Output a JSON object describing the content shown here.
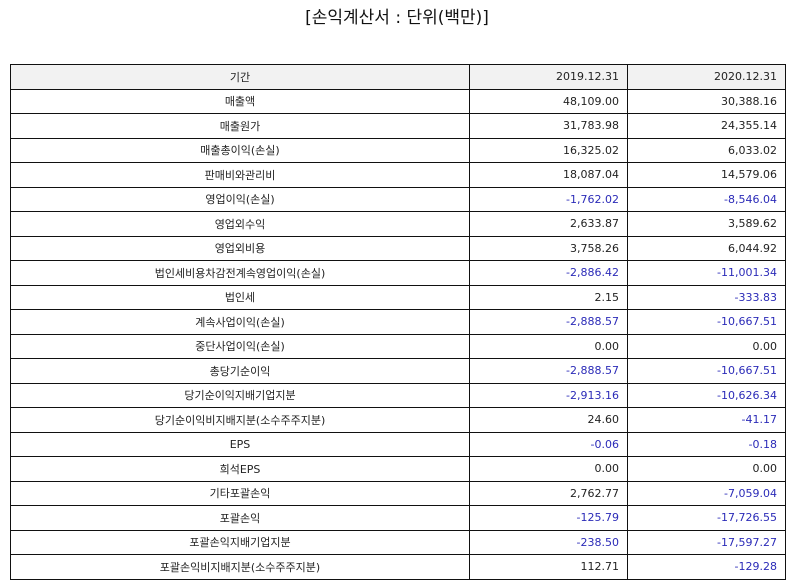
{
  "title": "[손익계산서 : 단위(백만)]",
  "table": {
    "header": [
      "기간",
      "2019.12.31",
      "2020.12.31"
    ],
    "rows": [
      {
        "label": "매출액",
        "values": [
          "48,109.00",
          "30,388.16"
        ]
      },
      {
        "label": "매출원가",
        "values": [
          "31,783.98",
          "24,355.14"
        ]
      },
      {
        "label": "매출총이익(손실)",
        "values": [
          "16,325.02",
          "6,033.02"
        ]
      },
      {
        "label": "판매비와관리비",
        "values": [
          "18,087.04",
          "14,579.06"
        ]
      },
      {
        "label": "영업이익(손실)",
        "values": [
          "-1,762.02",
          "-8,546.04"
        ]
      },
      {
        "label": "영업외수익",
        "values": [
          "2,633.87",
          "3,589.62"
        ]
      },
      {
        "label": "영업외비용",
        "values": [
          "3,758.26",
          "6,044.92"
        ]
      },
      {
        "label": "법인세비용차감전계속영업이익(손실)",
        "values": [
          "-2,886.42",
          "-11,001.34"
        ]
      },
      {
        "label": "법인세",
        "values": [
          "2.15",
          "-333.83"
        ]
      },
      {
        "label": "계속사업이익(손실)",
        "values": [
          "-2,888.57",
          "-10,667.51"
        ]
      },
      {
        "label": "중단사업이익(손실)",
        "values": [
          "0.00",
          "0.00"
        ]
      },
      {
        "label": "총당기순이익",
        "values": [
          "-2,888.57",
          "-10,667.51"
        ]
      },
      {
        "label": "당기순이익지배기업지분",
        "values": [
          "-2,913.16",
          "-10,626.34"
        ]
      },
      {
        "label": "당기순이익비지배지분(소수주주지분)",
        "values": [
          "24.60",
          "-41.17"
        ]
      },
      {
        "label": "EPS",
        "values": [
          "-0.06",
          "-0.18"
        ]
      },
      {
        "label": "희석EPS",
        "values": [
          "0.00",
          "0.00"
        ]
      },
      {
        "label": "기타포괄손익",
        "values": [
          "2,762.77",
          "-7,059.04"
        ]
      },
      {
        "label": "포괄손익",
        "values": [
          "-125.79",
          "-17,726.55"
        ]
      },
      {
        "label": "포괄손익지배기업지분",
        "values": [
          "-238.50",
          "-17,597.27"
        ]
      },
      {
        "label": "포괄손익비지배지분(소수주주지분)",
        "values": [
          "112.71",
          "-129.28"
        ]
      }
    ]
  },
  "colors": {
    "negative": "#2b2bb8",
    "header_bg": "#f2f2f2",
    "border": "#111111"
  }
}
